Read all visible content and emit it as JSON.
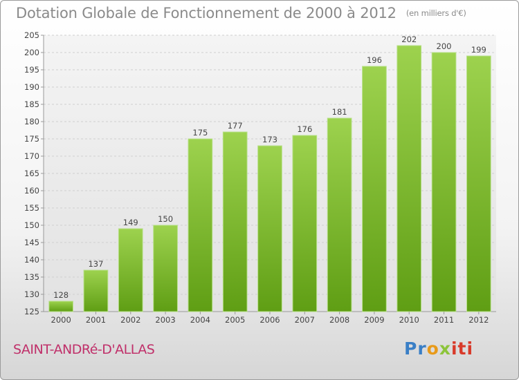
{
  "chart_data": {
    "type": "bar",
    "title": "Dotation Globale de Fonctionnement de 2000 à 2012",
    "subtitle": "(en milliers d'€)",
    "categories": [
      "2000",
      "2001",
      "2002",
      "2003",
      "2004",
      "2005",
      "2006",
      "2007",
      "2008",
      "2009",
      "2010",
      "2011",
      "2012"
    ],
    "values": [
      128,
      137,
      149,
      150,
      175,
      177,
      173,
      176,
      181,
      196,
      202,
      200,
      199
    ],
    "ylim": [
      125,
      205
    ],
    "yticks": [
      125,
      130,
      135,
      140,
      145,
      150,
      155,
      160,
      165,
      170,
      175,
      180,
      185,
      190,
      195,
      200,
      205
    ],
    "xlabel": "",
    "ylabel": "",
    "grid": true,
    "bar_color": "#7fbf2e"
  },
  "footer": {
    "commune": "SAINT-ANDRé-D'ALLAS",
    "brand": [
      "Pr",
      "o",
      "x",
      "iti"
    ]
  }
}
